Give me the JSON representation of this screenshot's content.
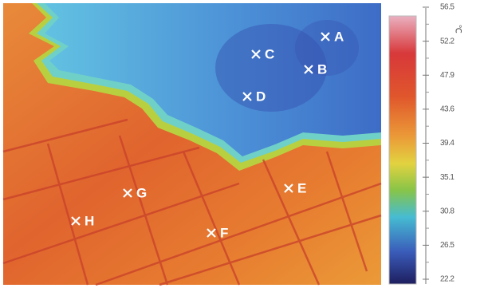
{
  "markers": [
    {
      "label": "A"
    },
    {
      "label": "B"
    },
    {
      "label": "C"
    },
    {
      "label": "D"
    },
    {
      "label": "E"
    },
    {
      "label": "F"
    },
    {
      "label": "G"
    },
    {
      "label": "H"
    }
  ],
  "colorbar": {
    "unit": "℃",
    "ticks": [
      56.5,
      52.2,
      47.9,
      43.6,
      39.4,
      35.1,
      30.8,
      26.5,
      22.2
    ]
  }
}
